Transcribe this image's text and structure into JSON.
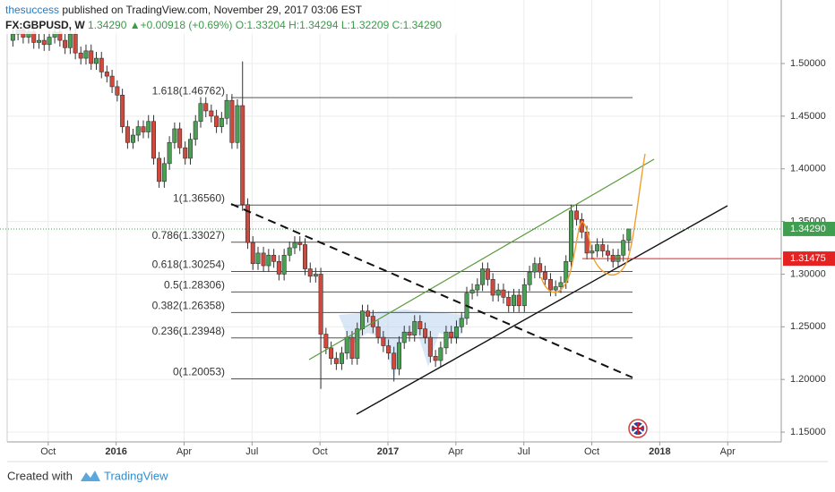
{
  "header": {
    "author": "thesuccess",
    "published": "published on TradingView.com, November 29, 2017 03:06 EST",
    "symbol": "FX:GBPUSD, W",
    "last": "1.34290",
    "arrow": "▲",
    "change": "+0.00918 (+0.69%)",
    "o": "O:1.33204",
    "h": "H:1.34294",
    "l": "L:1.32209",
    "c": "C:1.34290"
  },
  "footer": {
    "created": "Created with",
    "brand": "TradingView"
  },
  "chart_data": {
    "type": "candlestick",
    "up_color": "#4a9f55",
    "down_color": "#d1483c",
    "grid": true,
    "xlim": [
      2015.599,
      2018.447
    ],
    "xticks": [
      {
        "value": 2015.75,
        "label": "Oct"
      },
      2016,
      {
        "value": 2016.25,
        "label": "Apr"
      },
      {
        "value": 2016.5,
        "label": "Jul"
      },
      {
        "value": 2016.75,
        "label": "Oct"
      },
      2017,
      {
        "value": 2017.25,
        "label": "Apr"
      },
      {
        "value": 2017.5,
        "label": "Jul"
      },
      {
        "value": 2017.75,
        "label": "Oct"
      },
      2018,
      {
        "value": 2018.25,
        "label": "Apr"
      }
    ],
    "ylim": [
      1.1407,
      1.545
    ],
    "yticks": [
      {
        "value": 1.15,
        "label": "1.15000"
      },
      {
        "value": 1.2,
        "label": "1.20000"
      },
      {
        "value": 1.25,
        "label": "1.25000"
      },
      {
        "value": 1.3,
        "label": "1.30000"
      },
      {
        "value": 1.35,
        "label": "1.35000"
      },
      {
        "value": 1.4,
        "label": "1.40000"
      },
      {
        "value": 1.45,
        "label": "1.45000"
      },
      {
        "value": 1.5,
        "label": "1.50000"
      }
    ],
    "fib_levels": [
      {
        "value": 1.46762,
        "label": "1.618(1.46762)"
      },
      {
        "value": 1.3656,
        "label": "1(1.36560)"
      },
      {
        "value": 1.33027,
        "label": "0.786(1.33027)"
      },
      {
        "value": 1.30254,
        "label": "0.618(1.30254)"
      },
      {
        "value": 1.28306,
        "label": "0.5(1.28306)"
      },
      {
        "value": 1.26358,
        "label": "0.382(1.26358)"
      },
      {
        "value": 1.23948,
        "label": "0.236(1.23948)"
      },
      {
        "value": 1.20053,
        "label": "0(1.20053)"
      }
    ],
    "price_tags": [
      {
        "value": 1.3429,
        "label": "1.34290",
        "color": "#3f9e4f"
      },
      {
        "value": 1.31475,
        "label": "1.31475",
        "color": "#e52222"
      }
    ],
    "x": [
      2015.62,
      2015.639,
      2015.658,
      2015.678,
      2015.697,
      2015.716,
      2015.735,
      2015.754,
      2015.774,
      2015.793,
      2015.812,
      2015.831,
      2015.85,
      2015.87,
      2015.889,
      2015.908,
      2015.927,
      2015.946,
      2015.966,
      2015.985,
      2016.004,
      2016.023,
      2016.042,
      2016.062,
      2016.081,
      2016.1,
      2016.119,
      2016.138,
      2016.158,
      2016.177,
      2016.196,
      2016.215,
      2016.234,
      2016.254,
      2016.273,
      2016.292,
      2016.311,
      2016.33,
      2016.35,
      2016.369,
      2016.388,
      2016.407,
      2016.426,
      2016.446,
      2016.465,
      2016.484,
      2016.503,
      2016.522,
      2016.542,
      2016.561,
      2016.58,
      2016.599,
      2016.618,
      2016.638,
      2016.657,
      2016.676,
      2016.695,
      2016.714,
      2016.734,
      2016.753,
      2016.772,
      2016.791,
      2016.81,
      2016.83,
      2016.849,
      2016.868,
      2016.887,
      2016.906,
      2016.926,
      2016.945,
      2016.964,
      2016.983,
      2017.002,
      2017.022,
      2017.041,
      2017.06,
      2017.079,
      2017.098,
      2017.118,
      2017.137,
      2017.156,
      2017.175,
      2017.194,
      2017.214,
      2017.233,
      2017.252,
      2017.271,
      2017.29,
      2017.31,
      2017.329,
      2017.348,
      2017.367,
      2017.386,
      2017.406,
      2017.425,
      2017.444,
      2017.463,
      2017.482,
      2017.502,
      2017.521,
      2017.54,
      2017.559,
      2017.578,
      2017.598,
      2017.617,
      2017.636,
      2017.655,
      2017.674,
      2017.694,
      2017.713,
      2017.732,
      2017.751,
      2017.77,
      2017.79,
      2017.809,
      2017.828,
      2017.847,
      2017.866,
      2017.886
    ],
    "open": [
      1.522,
      1.528,
      1.532,
      1.525,
      1.53,
      1.52,
      1.522,
      1.518,
      1.525,
      1.53,
      1.522,
      1.515,
      1.528,
      1.51,
      1.505,
      1.512,
      1.5,
      1.505,
      1.492,
      1.488,
      1.478,
      1.47,
      1.44,
      1.425,
      1.432,
      1.44,
      1.435,
      1.445,
      1.41,
      1.388,
      1.405,
      1.425,
      1.438,
      1.42,
      1.41,
      1.428,
      1.445,
      1.462,
      1.455,
      1.45,
      1.44,
      1.448,
      1.465,
      1.425,
      1.46,
      1.366,
      1.33,
      1.31,
      1.32,
      1.308,
      1.318,
      1.312,
      1.3,
      1.318,
      1.325,
      1.33,
      1.328,
      1.305,
      1.298,
      1.3,
      1.243,
      1.23,
      1.22,
      1.215,
      1.225,
      1.24,
      1.22,
      1.248,
      1.265,
      1.26,
      1.25,
      1.24,
      1.232,
      1.225,
      1.21,
      1.235,
      1.245,
      1.242,
      1.255,
      1.248,
      1.24,
      1.222,
      1.218,
      1.23,
      1.245,
      1.24,
      1.25,
      1.258,
      1.282,
      1.285,
      1.29,
      1.305,
      1.295,
      1.28,
      1.285,
      1.278,
      1.27,
      1.28,
      1.27,
      1.29,
      1.302,
      1.31,
      1.302,
      1.295,
      1.285,
      1.288,
      1.292,
      1.312,
      1.36,
      1.352,
      1.34,
      1.32,
      1.322,
      1.328,
      1.322,
      1.318,
      1.312,
      1.318,
      1.33204
    ],
    "high": [
      1.534,
      1.538,
      1.538,
      1.536,
      1.536,
      1.528,
      1.528,
      1.531,
      1.536,
      1.536,
      1.528,
      1.534,
      1.534,
      1.516,
      1.518,
      1.518,
      1.511,
      1.511,
      1.498,
      1.494,
      1.484,
      1.476,
      1.446,
      1.438,
      1.446,
      1.446,
      1.451,
      1.451,
      1.416,
      1.411,
      1.431,
      1.444,
      1.444,
      1.426,
      1.434,
      1.451,
      1.468,
      1.468,
      1.461,
      1.456,
      1.454,
      1.471,
      1.471,
      1.466,
      1.502,
      1.372,
      1.336,
      1.326,
      1.326,
      1.324,
      1.324,
      1.318,
      1.324,
      1.331,
      1.336,
      1.336,
      1.334,
      1.311,
      1.306,
      1.306,
      1.249,
      1.236,
      1.226,
      1.231,
      1.246,
      1.246,
      1.254,
      1.271,
      1.271,
      1.266,
      1.256,
      1.246,
      1.238,
      1.231,
      1.241,
      1.251,
      1.251,
      1.261,
      1.261,
      1.254,
      1.246,
      1.228,
      1.236,
      1.251,
      1.251,
      1.256,
      1.264,
      1.288,
      1.291,
      1.296,
      1.311,
      1.311,
      1.301,
      1.291,
      1.291,
      1.284,
      1.286,
      1.286,
      1.296,
      1.308,
      1.316,
      1.316,
      1.308,
      1.301,
      1.294,
      1.298,
      1.318,
      1.366,
      1.366,
      1.358,
      1.346,
      1.328,
      1.334,
      1.334,
      1.328,
      1.324,
      1.324,
      1.338,
      1.34294
    ],
    "low": [
      1.516,
      1.522,
      1.519,
      1.519,
      1.514,
      1.514,
      1.512,
      1.512,
      1.519,
      1.516,
      1.509,
      1.509,
      1.504,
      1.499,
      1.499,
      1.494,
      1.494,
      1.486,
      1.482,
      1.472,
      1.464,
      1.434,
      1.419,
      1.419,
      1.426,
      1.429,
      1.429,
      1.404,
      1.382,
      1.382,
      1.399,
      1.419,
      1.414,
      1.404,
      1.404,
      1.422,
      1.439,
      1.449,
      1.444,
      1.434,
      1.434,
      1.442,
      1.419,
      1.419,
      1.36,
      1.324,
      1.304,
      1.304,
      1.302,
      1.302,
      1.306,
      1.294,
      1.294,
      1.312,
      1.319,
      1.322,
      1.299,
      1.292,
      1.292,
      1.191,
      1.224,
      1.214,
      1.209,
      1.209,
      1.219,
      1.214,
      1.214,
      1.242,
      1.254,
      1.244,
      1.234,
      1.226,
      1.219,
      1.198,
      1.204,
      1.229,
      1.236,
      1.236,
      1.242,
      1.234,
      1.216,
      1.212,
      1.212,
      1.224,
      1.234,
      1.234,
      1.244,
      1.252,
      1.276,
      1.279,
      1.284,
      1.289,
      1.274,
      1.274,
      1.272,
      1.264,
      1.264,
      1.264,
      1.264,
      1.284,
      1.296,
      1.296,
      1.289,
      1.279,
      1.279,
      1.282,
      1.286,
      1.306,
      1.346,
      1.334,
      1.314,
      1.314,
      1.316,
      1.316,
      1.312,
      1.306,
      1.306,
      1.312,
      1.32209
    ],
    "close": [
      1.528,
      1.532,
      1.525,
      1.53,
      1.52,
      1.522,
      1.518,
      1.525,
      1.53,
      1.522,
      1.515,
      1.528,
      1.51,
      1.505,
      1.512,
      1.5,
      1.505,
      1.492,
      1.488,
      1.478,
      1.47,
      1.44,
      1.425,
      1.432,
      1.44,
      1.435,
      1.445,
      1.41,
      1.388,
      1.405,
      1.425,
      1.438,
      1.42,
      1.41,
      1.428,
      1.445,
      1.462,
      1.455,
      1.45,
      1.44,
      1.448,
      1.465,
      1.425,
      1.46,
      1.366,
      1.33,
      1.31,
      1.32,
      1.308,
      1.318,
      1.312,
      1.3,
      1.318,
      1.325,
      1.33,
      1.328,
      1.305,
      1.298,
      1.3,
      1.243,
      1.23,
      1.22,
      1.215,
      1.225,
      1.24,
      1.22,
      1.248,
      1.265,
      1.26,
      1.25,
      1.24,
      1.232,
      1.225,
      1.21,
      1.235,
      1.245,
      1.242,
      1.255,
      1.248,
      1.24,
      1.222,
      1.218,
      1.23,
      1.245,
      1.24,
      1.25,
      1.258,
      1.282,
      1.285,
      1.29,
      1.305,
      1.295,
      1.28,
      1.285,
      1.278,
      1.27,
      1.28,
      1.27,
      1.29,
      1.302,
      1.31,
      1.302,
      1.295,
      1.285,
      1.288,
      1.292,
      1.312,
      1.36,
      1.352,
      1.34,
      1.32,
      1.322,
      1.328,
      1.322,
      1.318,
      1.312,
      1.318,
      1.33204,
      1.3429
    ]
  }
}
